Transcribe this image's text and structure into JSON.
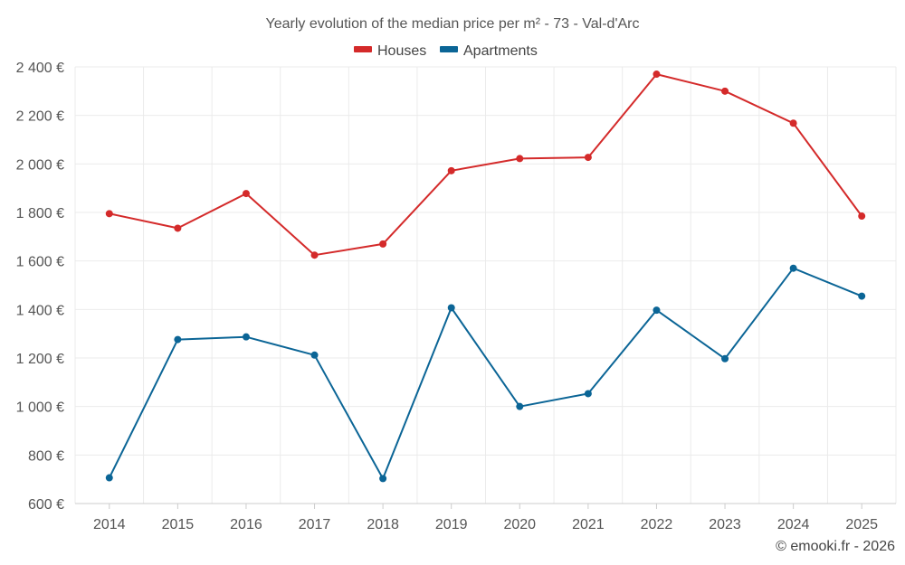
{
  "chart_data": {
    "type": "line",
    "title": "Yearly evolution of the median price per m² - 73 - Val-d'Arc",
    "xlabel": "",
    "ylabel": "",
    "categories": [
      "2014",
      "2015",
      "2016",
      "2017",
      "2018",
      "2019",
      "2020",
      "2021",
      "2022",
      "2023",
      "2024",
      "2025"
    ],
    "y_tick_labels": [
      "600 €",
      "800 €",
      "1 000 €",
      "1 200 €",
      "1 400 €",
      "1 600 €",
      "1 800 €",
      "2 000 €",
      "2 200 €",
      "2 400 €"
    ],
    "y_ticks": [
      600,
      800,
      1000,
      1200,
      1400,
      1600,
      1800,
      2000,
      2200,
      2400
    ],
    "ylim": [
      600,
      2400
    ],
    "grid": true,
    "legend_position": "top-center",
    "series": [
      {
        "name": "Houses",
        "color": "#d42a2a",
        "values": [
          1795,
          1735,
          1878,
          1624,
          1670,
          1972,
          2022,
          2027,
          2370,
          2300,
          2168,
          1785
        ]
      },
      {
        "name": "Apartments",
        "color": "#0b6596",
        "values": [
          706,
          1276,
          1287,
          1212,
          703,
          1407,
          1000,
          1053,
          1397,
          1197,
          1570,
          1455
        ]
      }
    ]
  },
  "credit": "© emooki.fr - 2026"
}
